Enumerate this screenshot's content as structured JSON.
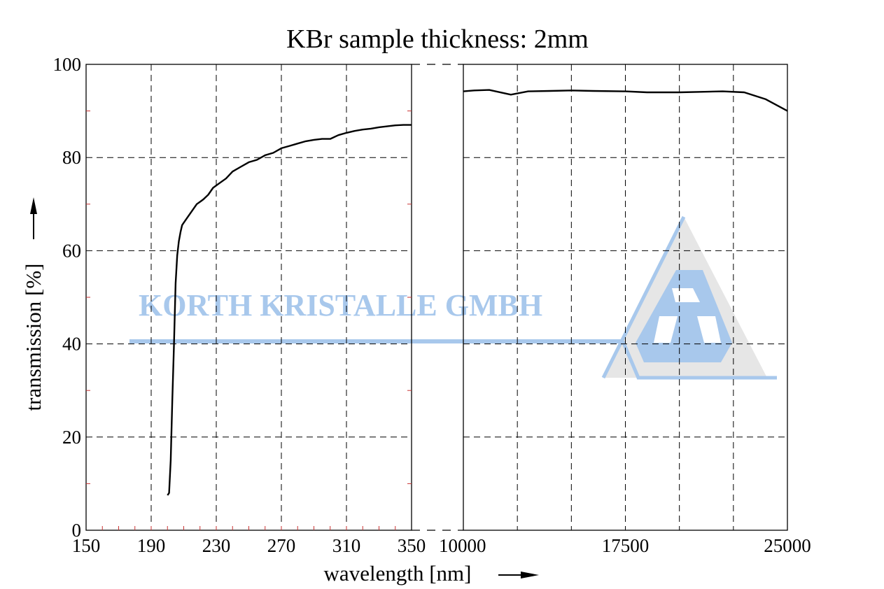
{
  "chart_data": {
    "type": "line",
    "title": "KBr sample thickness: 2mm",
    "xlabel": "wavelength [nm]",
    "ylabel": "transmission [%]",
    "ylim": [
      0,
      100
    ],
    "yticks": [
      "0",
      "20",
      "40",
      "60",
      "80",
      "100"
    ],
    "grid": true,
    "broken_x_axis": true,
    "panels": [
      {
        "xlim": [
          150,
          350
        ],
        "xticks": [
          "150",
          "190",
          "230",
          "270",
          "310",
          "350"
        ],
        "xtick_values": [
          150,
          190,
          230,
          270,
          310,
          350
        ],
        "grid_x": [
          190,
          230,
          270,
          310
        ],
        "series": [
          {
            "x": [
              200,
              201,
              202,
              203,
              204,
              205,
              206,
              207,
              208,
              209,
              210,
              212,
              215,
              218,
              220,
              222,
              225,
              228,
              232,
              236,
              240,
              245,
              250,
              255,
              260,
              265,
              270,
              275,
              280,
              285,
              290,
              295,
              300,
              305,
              310,
              315,
              320,
              325,
              330,
              335,
              340,
              345,
              350
            ],
            "y": [
              7.5,
              8,
              15,
              28,
              40,
              53,
              59,
              62,
              64,
              65.5,
              66,
              67,
              68.5,
              70,
              70.5,
              71,
              72,
              73.5,
              74.5,
              75.5,
              77,
              78,
              79,
              79.5,
              80.5,
              81,
              82,
              82.5,
              83,
              83.5,
              83.8,
              84,
              84,
              84.8,
              85.3,
              85.7,
              86,
              86.2,
              86.5,
              86.7,
              86.9,
              87,
              87
            ]
          }
        ]
      },
      {
        "xlim": [
          10000,
          25000
        ],
        "xticks": [
          "10000",
          "17500",
          "25000"
        ],
        "xtick_values": [
          10000,
          17500,
          25000
        ],
        "grid_x": [
          12500,
          15000,
          17500,
          20000,
          22500
        ],
        "series": [
          {
            "x": [
              10000,
              10500,
              11200,
              12200,
              13000,
              14000,
              15000,
              16000,
              17500,
              18500,
              20000,
              21000,
              22000,
              23000,
              24000,
              25000
            ],
            "y": [
              94.2,
              94.4,
              94.5,
              93.5,
              94.2,
              94.3,
              94.4,
              94.3,
              94.2,
              94,
              94,
              94.1,
              94.2,
              94,
              92.5,
              90
            ]
          }
        ]
      }
    ]
  },
  "watermark": {
    "text": "KORTH KRISTALLE GMBH",
    "color": "#a8c8ec",
    "logo": "korth-kristalle-triangle-logo"
  }
}
